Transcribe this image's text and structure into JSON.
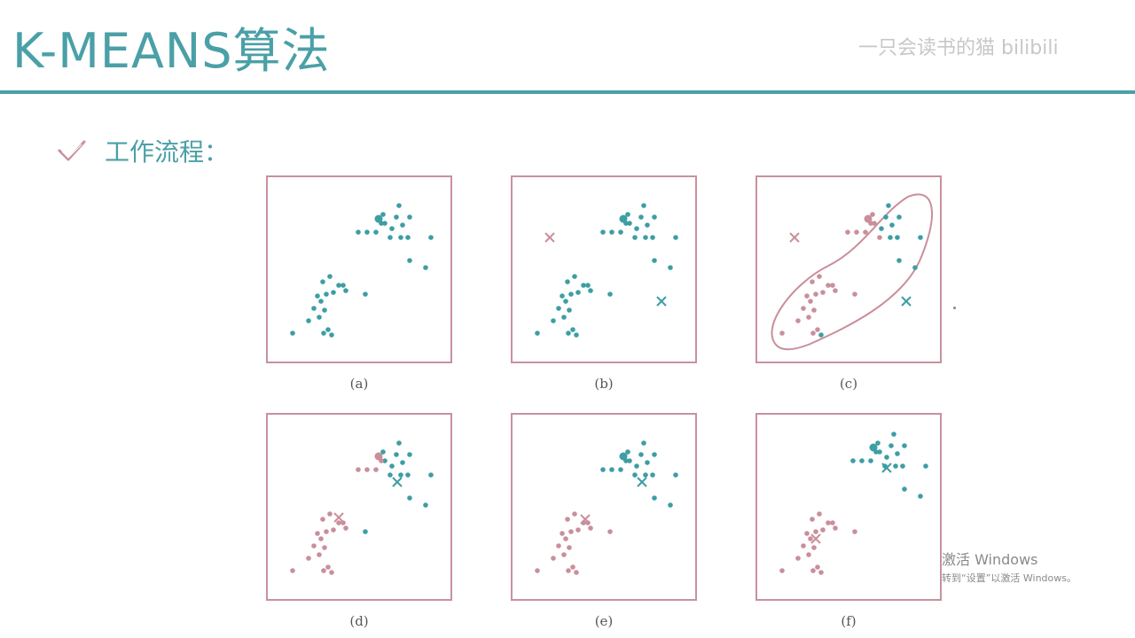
{
  "header": {
    "title": "K-MEANS算法",
    "watermark": "一只会读书的猫 bilibili"
  },
  "section": {
    "subtitle": "工作流程："
  },
  "colors": {
    "teal": "#3d9ea4",
    "pink": "#c98f9b",
    "frame": "#c8919e"
  },
  "panels": [
    {
      "caption": "(a)"
    },
    {
      "caption": "(b)"
    },
    {
      "caption": "(c)"
    },
    {
      "caption": "(d)"
    },
    {
      "caption": "(e)"
    },
    {
      "caption": "(f)"
    }
  ],
  "os_overlay": {
    "line1": "激活 Windows",
    "line2": "转到“设置”以激活 Windows。"
  }
}
